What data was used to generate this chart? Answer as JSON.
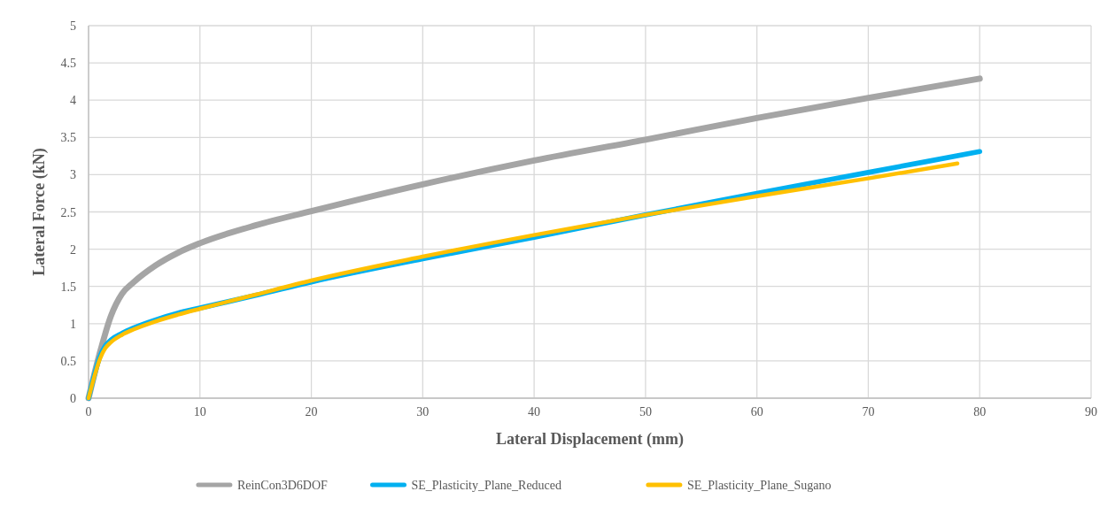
{
  "chart_data": {
    "type": "line",
    "xlabel": "Lateral Displacement (mm)",
    "ylabel": "Lateral Force (kN)",
    "xlim": [
      0,
      90
    ],
    "xticks": [
      0,
      10,
      20,
      30,
      40,
      50,
      60,
      70,
      80,
      90
    ],
    "ylim": [
      0,
      5
    ],
    "yticks": [
      0,
      {
        "value": 0.5,
        "label": "0.5"
      },
      1,
      {
        "value": 1.5,
        "label": "1.5"
      },
      2,
      {
        "value": 2.5,
        "label": "2.5"
      },
      3,
      {
        "value": 3.5,
        "label": "3.5"
      },
      4,
      {
        "value": 4.5,
        "label": "4.5"
      },
      5
    ],
    "grid": true,
    "legend": "bottom",
    "marker": "none",
    "line_style": "solid",
    "series": [
      {
        "name": "ReinCon3D6DOF",
        "color": "#a5a5a5",
        "x": [
          0,
          1,
          2,
          3,
          4,
          6,
          8,
          10,
          15,
          20,
          30,
          40,
          50,
          60,
          70,
          80
        ],
        "values": [
          0,
          0.6,
          1.1,
          1.4,
          1.55,
          1.78,
          1.95,
          2.08,
          2.32,
          2.51,
          2.87,
          3.19,
          3.47,
          3.76,
          4.03,
          4.29
        ]
      },
      {
        "name": "SE_Plasticity_Plane_Reduced",
        "color": "#00b0f0",
        "x": [
          0,
          0.5,
          1,
          1.5,
          2,
          3,
          4,
          6,
          8,
          10,
          15,
          20,
          30,
          40,
          50,
          60,
          70,
          80
        ],
        "values": [
          0,
          0.3,
          0.55,
          0.7,
          0.78,
          0.87,
          0.94,
          1.05,
          1.14,
          1.21,
          1.38,
          1.56,
          1.87,
          2.16,
          2.46,
          2.75,
          3.03,
          3.31
        ]
      },
      {
        "name": "SE_Plasticity_Plane_Sugano",
        "color": "#ffc000",
        "x": [
          0,
          0.5,
          1,
          1.5,
          2,
          3,
          4,
          6,
          8,
          10,
          15,
          20,
          30,
          40,
          50,
          60,
          70,
          78
        ],
        "values": [
          0,
          0.28,
          0.52,
          0.67,
          0.75,
          0.85,
          0.92,
          1.03,
          1.12,
          1.2,
          1.39,
          1.58,
          1.9,
          2.19,
          2.46,
          2.71,
          2.95,
          3.15
        ]
      }
    ]
  }
}
